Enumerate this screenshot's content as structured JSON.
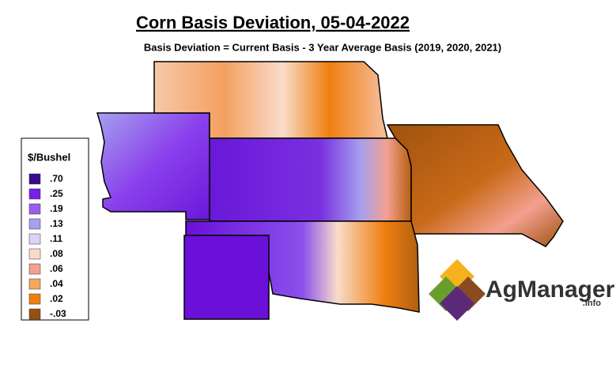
{
  "header": {
    "title": "Corn Basis Deviation, 05-04-2022",
    "subtitle": "Basis Deviation = Current Basis - 3 Year Average Basis (2019, 2020, 2021)"
  },
  "legend": {
    "title": "$/Bushel",
    "items": [
      {
        "label": ".70",
        "color": "#3a0a8c"
      },
      {
        "label": ".25",
        "color": "#7a1ee8"
      },
      {
        "label": ".19",
        "color": "#9b5df0"
      },
      {
        "label": ".13",
        "color": "#a6a0ee"
      },
      {
        "label": ".11",
        "color": "#ddd3f6"
      },
      {
        "label": ".08",
        "color": "#f8dccb"
      },
      {
        "label": ".06",
        "color": "#f3a090"
      },
      {
        "label": ".04",
        "color": "#f5a75e"
      },
      {
        "label": ".02",
        "color": "#f07f10"
      },
      {
        "label": "-.03",
        "color": "#9a4f0c"
      }
    ]
  },
  "logo": {
    "name": "AgManager",
    "suffix": ".info"
  }
}
